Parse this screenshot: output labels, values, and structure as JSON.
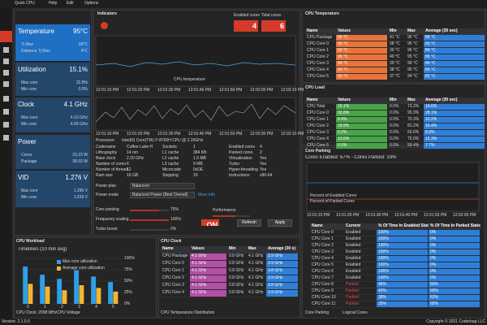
{
  "app": {
    "title": "Quick CPU",
    "menu": [
      "Help",
      "Edit",
      "Options"
    ]
  },
  "cards": [
    {
      "title": "Temperature",
      "value": "95°C",
      "rows": [
        [
          "Tj Max",
          "99°C"
        ],
        [
          "Distance Tj Max",
          "4°C"
        ]
      ]
    },
    {
      "title": "Utilization",
      "value": "15.1%",
      "rows": [
        [
          "Max core",
          "32.8%"
        ],
        [
          "Min core",
          "0.0%"
        ]
      ]
    },
    {
      "title": "Clock",
      "value": "4.1 GHz",
      "rows": [
        [
          "Max core",
          "4.10 GHz"
        ],
        [
          "Min core",
          "4.09 GHz"
        ]
      ]
    },
    {
      "title": "Power",
      "value": "",
      "rows": [
        [
          "Cores",
          "23.23 W"
        ],
        [
          "Package",
          "39.02 W"
        ]
      ]
    },
    {
      "title": "VID",
      "value": "1.276 V",
      "rows": [
        [
          "Max core",
          "1.296 V"
        ],
        [
          "Min core",
          "1.229 V"
        ]
      ]
    }
  ],
  "indicators": {
    "title": "Indicators",
    "displays": [
      {
        "label": "Enabled cores",
        "value": "4"
      },
      {
        "label": "Total cores",
        "value": "6"
      }
    ]
  },
  "graph": {
    "legend": "CPU temperature",
    "times": [
      "12:01:10 PM",
      "12:01:20 PM",
      "12:01:30 PM",
      "12:01:40 PM",
      "12:01:50 PM",
      "12:02:00 PM",
      "12:02:10 PM"
    ]
  },
  "info": {
    "processor_label": "Processor:",
    "processor": "Intel(R) Core(TM) i7-8750H CPU @ 2.20GHz",
    "groups": [
      [
        [
          "Codename",
          "Coffee Lake-H"
        ],
        [
          "Lithography",
          "14 nm"
        ],
        [
          "Base clock",
          "2.20 GHz"
        ],
        [
          "Number of cores",
          "6"
        ],
        [
          "Number of threads",
          "12"
        ],
        [
          "Ram size",
          "16 GB"
        ]
      ],
      [
        [
          "Sockets",
          "1"
        ],
        [
          "L1 cache",
          "384 KB"
        ],
        [
          "L2 cache",
          "1.5 MB"
        ],
        [
          "L3 cache",
          "9 MB"
        ],
        [
          "Microcode",
          "0xDE"
        ],
        [
          "Stepping",
          "10"
        ]
      ],
      [
        [
          "Enabled cores",
          "4"
        ],
        [
          "Parked cores",
          "2"
        ],
        [
          "Virtualization",
          "Yes"
        ],
        [
          "Turbo",
          "Yes"
        ],
        [
          "Hyper-threading",
          "Yes"
        ],
        [
          "Instructions",
          "x86-64"
        ]
      ]
    ]
  },
  "settings": {
    "power_plan_label": "Power plan",
    "power_plan": "Balanced",
    "power_mode_label": "Power mode",
    "power_mode": "Balanced Power (Best Overall)",
    "more": "More info",
    "sliders": [
      [
        "Core parking",
        "75%"
      ],
      [
        "Frequency scaling",
        "100%"
      ],
      [
        "Turbo boost",
        "0%"
      ]
    ],
    "performance": "Performance",
    "toggle": "ON",
    "refresh": "Refresh",
    "apply": "Apply"
  },
  "temp_table": {
    "title": "CPU Temperature",
    "columns": [
      "Name",
      "Values",
      "Min",
      "Max",
      "Average (30 sec)"
    ],
    "rows": [
      [
        "CPU Package",
        "95 °C",
        "41 °C",
        "96 °C",
        "86 °C"
      ],
      [
        "CPU Core 0",
        "92 °C",
        "38 °C",
        "95 °C",
        "83 °C"
      ],
      [
        "CPU Core 1",
        "93 °C",
        "39 °C",
        "96 °C",
        "84 °C"
      ],
      [
        "CPU Core 2",
        "95 °C",
        "40 °C",
        "95 °C",
        "85 °C"
      ],
      [
        "CPU Core 3",
        "94 °C",
        "39 °C",
        "96 °C",
        "84 °C"
      ],
      [
        "CPU Core 4",
        "93 °C",
        "38 °C",
        "95 °C",
        "83 °C"
      ],
      [
        "CPU Core 5",
        "92 °C",
        "37 °C",
        "94 °C",
        "82 °C"
      ]
    ]
  },
  "load_table": {
    "title": "CPU Load",
    "columns": [
      "Name",
      "Values",
      "Min",
      "Max",
      "Average (30 sec)"
    ],
    "rows": [
      [
        "CPU Total",
        "15.1%",
        "0.0%",
        "73.2%",
        "14.6%"
      ],
      [
        "CPU Core 0",
        "32.8%",
        "0.0%",
        "95.3%",
        "28.1%"
      ],
      [
        "CPU Core 1",
        "9.4%",
        "0.0%",
        "70.3%",
        "10.2%"
      ],
      [
        "CPU Core 2",
        "18.8%",
        "0.0%",
        "81.2%",
        "16.4%"
      ],
      [
        "CPU Core 3",
        "6.2%",
        "0.0%",
        "65.6%",
        "8.9%"
      ],
      [
        "CPU Core 4",
        "12.5%",
        "0.0%",
        "75.0%",
        "12.3%"
      ],
      [
        "CPU Core 5",
        "0.0%",
        "0.0%",
        "59.4%",
        "7.7%"
      ]
    ]
  },
  "parking": {
    "title": "Core Parking",
    "summary": "Cores Enabled: 67% - Cores Parked: 33%",
    "legend": [
      "Percent of Enabled Cores",
      "Percent of Parked Cores"
    ],
    "times": [
      "12:01:10 PM",
      "12:01:20 PM",
      "12:01:30 PM",
      "12:01:40 PM",
      "12:01:50 PM",
      "12:02:00 PM"
    ],
    "columns": [
      "Name",
      "Current",
      "% Of Time In Enabled State",
      "% Of Time In Parked State"
    ],
    "rows": [
      [
        "CPU Core 0",
        "Enabled",
        "100%",
        "0%"
      ],
      [
        "CPU Core 1",
        "Enabled",
        "100%",
        "0%"
      ],
      [
        "CPU Core 2",
        "Enabled",
        "100%",
        "0%"
      ],
      [
        "CPU Core 3",
        "Enabled",
        "100%",
        "0%"
      ],
      [
        "CPU Core 4",
        "Enabled",
        "100%",
        "0%"
      ],
      [
        "CPU Core 5",
        "Enabled",
        "100%",
        "0%"
      ],
      [
        "CPU Core 6",
        "Enabled",
        "100%",
        "0%"
      ],
      [
        "CPU Core 7",
        "Enabled",
        "100%",
        "0%"
      ],
      [
        "CPU Core 8",
        "Parked",
        "45%",
        "55%"
      ],
      [
        "CPU Core 9",
        "Parked",
        "40%",
        "60%"
      ],
      [
        "CPU Core 10",
        "Parked",
        "38%",
        "62%"
      ],
      [
        "CPU Core 11",
        "Parked",
        "35%",
        "65%"
      ]
    ],
    "footer": [
      "Core Parking",
      "Logical Cores"
    ]
  },
  "workload": {
    "title": "CPU Workload",
    "subtitle": "Timelines (10 min avg)",
    "categories": [
      "0",
      "1",
      "2",
      "3",
      "4",
      "5"
    ],
    "series": [
      {
        "name": "Max core utilization",
        "color": "#2f9fe8",
        "values": [
          82,
          64,
          55,
          74,
          60,
          48
        ]
      },
      {
        "name": "Average core utilization",
        "color": "#f2b630",
        "values": [
          44,
          38,
          30,
          41,
          35,
          27
        ]
      }
    ],
    "ylim": [
      0,
      100
    ],
    "yticks": [
      {
        "value": 0,
        "label": "0%"
      },
      {
        "value": 25,
        "label": "25%"
      },
      {
        "value": 50,
        "label": "50%"
      },
      {
        "value": 75,
        "label": "75%"
      },
      {
        "value": 100,
        "label": "100%"
      }
    ],
    "footer": [
      "CPU Clock: 2098 MHz",
      "CPU Voltage"
    ]
  },
  "clock_table": {
    "title": "CPU Clock",
    "columns": [
      "Name",
      "Values",
      "Min",
      "Max",
      "Average (30 s)"
    ],
    "rows": [
      [
        "CPU Package",
        "4.1 GHz",
        "0.8 GHz",
        "4.1 GHz",
        "3.9 GHz"
      ],
      [
        "CPU Core 0",
        "4.1 GHz",
        "0.8 GHz",
        "4.1 GHz",
        "3.9 GHz"
      ],
      [
        "CPU Core 1",
        "4.1 GHz",
        "0.8 GHz",
        "4.1 GHz",
        "3.8 GHz"
      ],
      [
        "CPU Core 2",
        "4.1 GHz",
        "0.8 GHz",
        "4.1 GHz",
        "3.9 GHz"
      ],
      [
        "CPU Core 3",
        "4.1 GHz",
        "0.8 GHz",
        "4.1 GHz",
        "3.8 GHz"
      ],
      [
        "CPU Core 4",
        "4.1 GHz",
        "0.8 GHz",
        "4.1 GHz",
        "3.9 GHz"
      ]
    ],
    "footer": "CPU Temperature Distribution"
  },
  "status": {
    "version": "Version: 2.1.0.0",
    "copyright": "Copyright © 2021 Coderbag LLC"
  }
}
